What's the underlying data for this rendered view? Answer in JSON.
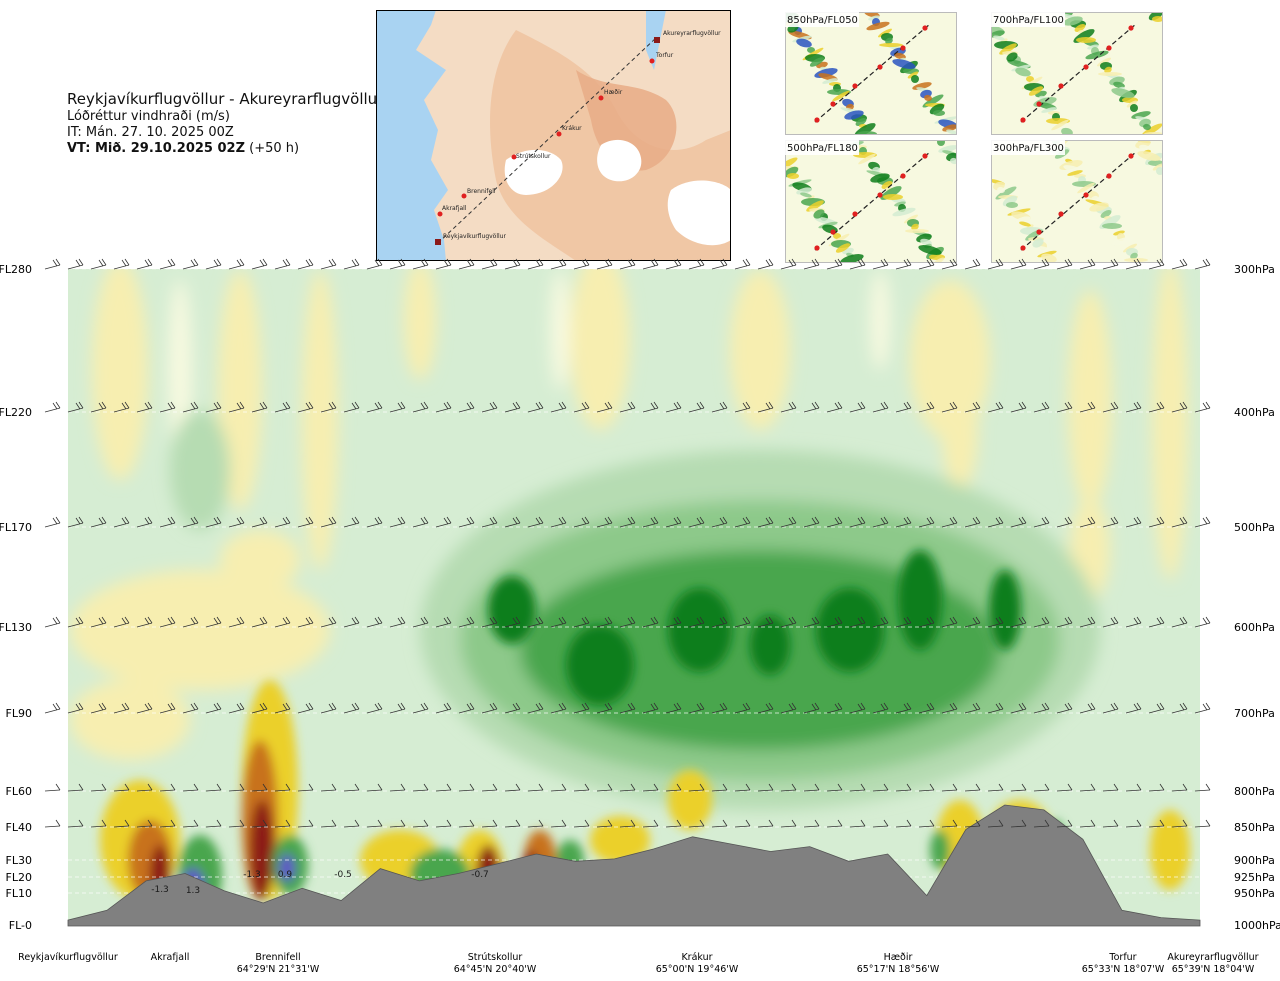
{
  "header": {
    "route": "Reykjavíkurflugvöllur - Akureyrarflugvöllur",
    "variable": "Lóðréttur vindhraði (m/s)",
    "it_label": "IT: Mán. 27. 10. 2025 00Z",
    "vt_label": "VT: Mið. 29.10.2025 02Z",
    "vt_suffix": "(+50 h)"
  },
  "map": {
    "places": [
      "Akureyrarflugvöllur",
      "Torfur",
      "Hæðir",
      "Krákur",
      "Strútskollur",
      "Brennifell",
      "Akrafjall",
      "Reykjavíkurflugvöllur"
    ]
  },
  "thumbnails": [
    {
      "label": "850hPa/FL050"
    },
    {
      "label": "700hPa/FL100"
    },
    {
      "label": "500hPa/FL180"
    },
    {
      "label": "300hPa/FL300"
    }
  ],
  "chart_data": {
    "type": "heatmap",
    "variable": "Lóðréttur vindhraði (m/s)",
    "levels": [
      {
        "fl": "FL280",
        "hpa": "300hPa"
      },
      {
        "fl": "FL220",
        "hpa": "400hPa"
      },
      {
        "fl": "FL170",
        "hpa": "500hPa"
      },
      {
        "fl": "FL130",
        "hpa": "600hPa"
      },
      {
        "fl": "FL90",
        "hpa": "700hPa"
      },
      {
        "fl": "FL60",
        "hpa": "800hPa"
      },
      {
        "fl": "FL40",
        "hpa": "850hPa"
      },
      {
        "fl": "FL30",
        "hpa": "900hPa"
      },
      {
        "fl": "FL20",
        "hpa": "925hPa"
      },
      {
        "fl": "FL10",
        "hpa": "950hPa"
      },
      {
        "fl": "FL-0",
        "hpa": "1000hPa"
      }
    ],
    "waypoints": [
      {
        "name": "Reykjavíkurflugvöllur",
        "coord": ""
      },
      {
        "name": "Akrafjall",
        "coord": ""
      },
      {
        "name": "Brennifell",
        "coord": "64°29'N 21°31'W"
      },
      {
        "name": "Strútskollur",
        "coord": "64°45'N 20°40'W"
      },
      {
        "name": "Krákur",
        "coord": "65°00'N 19°46'W"
      },
      {
        "name": "Hæðir",
        "coord": "65°17'N 18°56'W"
      },
      {
        "name": "Torfur",
        "coord": "65°33'N 18°07'W"
      },
      {
        "name": "Akureyrarflugvöllur",
        "coord": "65°39'N 18°04'W"
      }
    ],
    "annotations": [
      "1.3",
      "-1.3",
      "-1.3",
      "0.9",
      "-0.5",
      "-0.7"
    ],
    "terrain_heights_ft": [
      200,
      600,
      1800,
      2100,
      1400,
      900,
      1500,
      1000,
      2300,
      1800,
      2100,
      2500,
      2900,
      2600,
      2700,
      3100,
      3600,
      3300,
      3000,
      3200,
      2600,
      2900,
      1200,
      3900,
      4900,
      4700,
      3500,
      600,
      300,
      200
    ],
    "colors": {
      "strong_up": "#0e7e1a",
      "mod_up": "#4aa64e",
      "weak_up": "#8dc98a",
      "light_up": "#d3ecd1",
      "neutral": "#f7f9e0",
      "light_down": "#f7eeb0",
      "mod_down": "#ebd02a",
      "strong_down": "#c8721c",
      "extreme_down": "#8c1b12",
      "extreme_up": "#5f55c8",
      "terrain": "#808080"
    }
  }
}
